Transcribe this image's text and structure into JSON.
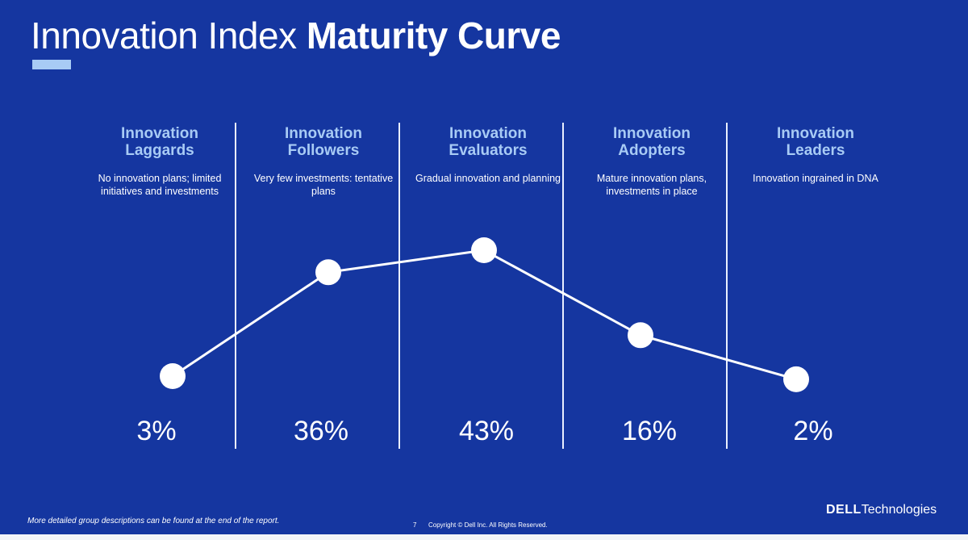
{
  "slide": {
    "title_light": "Innovation Index",
    "title_bold": "Maturity Curve",
    "accent_color": "#a8cbf5",
    "background_color": "#1536a0",
    "footnote": "More detailed group descriptions can be found at the end of the report.",
    "page_number": "7",
    "copyright": "Copyright © Dell Inc. All Rights Reserved.",
    "logo_brand": "DELL",
    "logo_suffix": "Technologies"
  },
  "chart_data": {
    "type": "line",
    "title": "Innovation Index Maturity Curve",
    "unit": "%",
    "categories": [
      "Innovation Laggards",
      "Innovation Followers",
      "Innovation Evaluators",
      "Innovation Adopters",
      "Innovation Leaders"
    ],
    "values": [
      3,
      36,
      43,
      16,
      2
    ],
    "value_labels": [
      "3%",
      "36%",
      "43%",
      "16%",
      "2%"
    ],
    "groups": [
      {
        "name_line1": "Innovation",
        "name_line2": "Laggards",
        "description": "No innovation plans; limited initiatives and investments"
      },
      {
        "name_line1": "Innovation",
        "name_line2": "Followers",
        "description": "Very few investments: tentative plans"
      },
      {
        "name_line1": "Innovation",
        "name_line2": "Evaluators",
        "description": "Gradual innovation and planning"
      },
      {
        "name_line1": "Innovation",
        "name_line2": "Adopters",
        "description": "Mature innovation plans, investments in place"
      },
      {
        "name_line1": "Innovation",
        "name_line2": "Leaders",
        "description": "Innovation ingrained in DNA"
      }
    ],
    "line_color": "#ffffff",
    "marker_color": "#ffffff",
    "grid": false,
    "legend": "none"
  }
}
